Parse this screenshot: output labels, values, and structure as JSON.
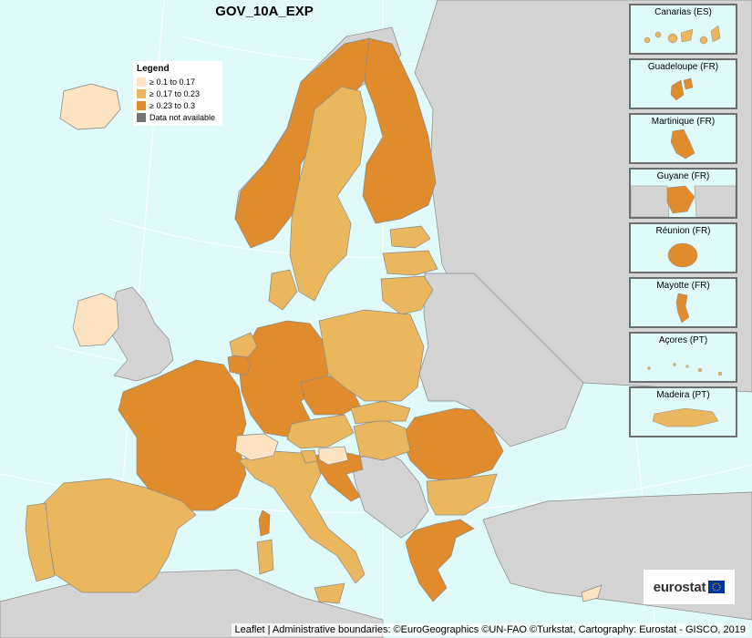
{
  "title": "GOV_10A_EXP",
  "legend": {
    "title": "Legend",
    "items": [
      {
        "label": "≥ 0.1 to 0.17",
        "color": "#fde3c1"
      },
      {
        "label": "≥ 0.17 to 0.23",
        "color": "#ebb75e"
      },
      {
        "label": "≥ 0.23 to 0.3",
        "color": "#e08c2d"
      },
      {
        "label": "Data not available",
        "color": "#737373"
      }
    ]
  },
  "colors": {
    "sea": "#e0fafa",
    "non_eu_land": "#d4d4d4",
    "border": "#8a8a8a"
  },
  "insets": [
    {
      "label": "Canarias (ES)",
      "class": "mid"
    },
    {
      "label": "Guadeloupe (FR)",
      "class": "high"
    },
    {
      "label": "Martinique (FR)",
      "class": "high"
    },
    {
      "label": "Guyane (FR)",
      "class": "high"
    },
    {
      "label": "Réunion (FR)",
      "class": "high"
    },
    {
      "label": "Mayotte (FR)",
      "class": "high"
    },
    {
      "label": "Açores (PT)",
      "class": "mid"
    },
    {
      "label": "Madeira (PT)",
      "class": "mid"
    }
  ],
  "logo": "eurostat",
  "attribution": "Leaflet | Administrative boundaries: ©EuroGeographics ©UN-FAO ©Turkstat, Cartography: Eurostat - GISCO, 2019"
}
